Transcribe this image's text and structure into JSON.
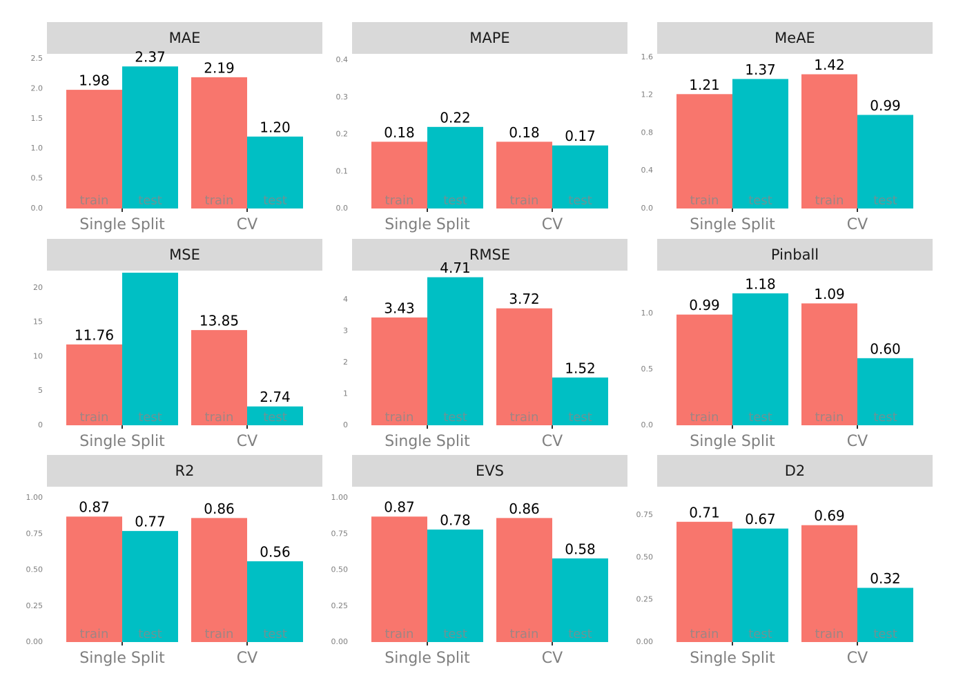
{
  "chart_data": [
    {
      "type": "bar",
      "title": "MAE",
      "categories": [
        "Single Split",
        "CV"
      ],
      "ylim": [
        0,
        2.58
      ],
      "yticks": [
        {
          "value": 0,
          "label": "0.0"
        },
        {
          "value": 0.5,
          "label": "0.5"
        },
        {
          "value": 1,
          "label": "1.0"
        },
        {
          "value": 1.5,
          "label": "1.5"
        },
        {
          "value": 2,
          "label": "2.0"
        },
        {
          "value": 2.5,
          "label": "2.5"
        }
      ],
      "series": [
        {
          "name": "train",
          "color": "#f8766d",
          "values": [
            1.98,
            2.19
          ],
          "value_labels": [
            "1.98",
            "2.19"
          ]
        },
        {
          "name": "test",
          "color": "#00bfc4",
          "values": [
            2.37,
            1.2
          ],
          "value_labels": [
            "2.37",
            "1.20"
          ]
        }
      ]
    },
    {
      "type": "bar",
      "title": "MAPE",
      "categories": [
        "Single Split",
        "CV"
      ],
      "ylim": [
        0,
        0.417
      ],
      "yticks": [
        {
          "value": 0,
          "label": "0.0"
        },
        {
          "value": 0.1,
          "label": "0.1"
        },
        {
          "value": 0.2,
          "label": "0.2"
        },
        {
          "value": 0.3,
          "label": "0.3"
        },
        {
          "value": 0.4,
          "label": "0.4"
        }
      ],
      "series": [
        {
          "name": "train",
          "color": "#f8766d",
          "values": [
            0.18,
            0.18
          ],
          "value_labels": [
            "0.18",
            "0.18"
          ]
        },
        {
          "name": "test",
          "color": "#00bfc4",
          "values": [
            0.22,
            0.17
          ],
          "value_labels": [
            "0.22",
            "0.17"
          ]
        }
      ]
    },
    {
      "type": "bar",
      "title": "MeAE",
      "categories": [
        "Single Split",
        "CV"
      ],
      "ylim": [
        0,
        1.636
      ],
      "yticks": [
        {
          "value": 0,
          "label": "0.0"
        },
        {
          "value": 0.4,
          "label": "0.4"
        },
        {
          "value": 0.8,
          "label": "0.8"
        },
        {
          "value": 1.2,
          "label": "1.2"
        },
        {
          "value": 1.6,
          "label": "1.6"
        }
      ],
      "series": [
        {
          "name": "train",
          "color": "#f8766d",
          "values": [
            1.21,
            1.42
          ],
          "value_labels": [
            "1.21",
            "1.42"
          ]
        },
        {
          "name": "test",
          "color": "#00bfc4",
          "values": [
            1.37,
            0.99
          ],
          "value_labels": [
            "1.37",
            "0.99"
          ]
        }
      ]
    },
    {
      "type": "bar",
      "title": "MSE",
      "categories": [
        "Single Split",
        "CV"
      ],
      "ylim": [
        0,
        22.5
      ],
      "yticks": [
        0,
        5,
        10,
        15,
        20
      ],
      "series": [
        {
          "name": "train",
          "color": "#f8766d",
          "values": [
            11.76,
            13.85
          ],
          "value_labels": [
            "11.76",
            "13.85"
          ]
        },
        {
          "name": "test",
          "color": "#00bfc4",
          "values": [
            22.2,
            2.74
          ],
          "value_labels": [
            null,
            "2.74"
          ]
        }
      ]
    },
    {
      "type": "bar",
      "title": "RMSE",
      "categories": [
        "Single Split",
        "CV"
      ],
      "ylim": [
        0,
        4.92
      ],
      "yticks": [
        0,
        1,
        2,
        3,
        4
      ],
      "series": [
        {
          "name": "train",
          "color": "#f8766d",
          "values": [
            3.43,
            3.72
          ],
          "value_labels": [
            "3.43",
            "3.72"
          ]
        },
        {
          "name": "test",
          "color": "#00bfc4",
          "values": [
            4.71,
            1.52
          ],
          "value_labels": [
            "4.71",
            "1.52"
          ]
        }
      ]
    },
    {
      "type": "bar",
      "title": "Pinball",
      "categories": [
        "Single Split",
        "CV"
      ],
      "ylim": [
        0,
        1.383
      ],
      "yticks": [
        {
          "value": 0,
          "label": "0.0"
        },
        {
          "value": 0.5,
          "label": "0.5"
        },
        {
          "value": 1,
          "label": "1.0"
        }
      ],
      "series": [
        {
          "name": "train",
          "color": "#f8766d",
          "values": [
            0.99,
            1.09
          ],
          "value_labels": [
            "0.99",
            "1.09"
          ]
        },
        {
          "name": "test",
          "color": "#00bfc4",
          "values": [
            1.18,
            0.6
          ],
          "value_labels": [
            "1.18",
            "0.60"
          ]
        }
      ]
    },
    {
      "type": "bar",
      "title": "R2",
      "categories": [
        "Single Split",
        "CV"
      ],
      "ylim": [
        0,
        1.077
      ],
      "yticks": [
        {
          "value": 0,
          "label": "0.00"
        },
        {
          "value": 0.25,
          "label": "0.25"
        },
        {
          "value": 0.5,
          "label": "0.50"
        },
        {
          "value": 0.75,
          "label": "0.75"
        },
        {
          "value": 1,
          "label": "1.00"
        }
      ],
      "series": [
        {
          "name": "train",
          "color": "#f8766d",
          "values": [
            0.87,
            0.86
          ],
          "value_labels": [
            "0.87",
            "0.86"
          ]
        },
        {
          "name": "test",
          "color": "#00bfc4",
          "values": [
            0.77,
            0.56
          ],
          "value_labels": [
            "0.77",
            "0.56"
          ]
        }
      ]
    },
    {
      "type": "bar",
      "title": "EVS",
      "categories": [
        "Single Split",
        "CV"
      ],
      "ylim": [
        0,
        1.077
      ],
      "yticks": [
        {
          "value": 0,
          "label": "0.00"
        },
        {
          "value": 0.25,
          "label": "0.25"
        },
        {
          "value": 0.5,
          "label": "0.50"
        },
        {
          "value": 0.75,
          "label": "0.75"
        },
        {
          "value": 1,
          "label": "1.00"
        }
      ],
      "series": [
        {
          "name": "train",
          "color": "#f8766d",
          "values": [
            0.87,
            0.86
          ],
          "value_labels": [
            "0.87",
            "0.86"
          ]
        },
        {
          "name": "test",
          "color": "#00bfc4",
          "values": [
            0.78,
            0.58
          ],
          "value_labels": [
            "0.78",
            "0.58"
          ]
        }
      ]
    },
    {
      "type": "bar",
      "title": "D2",
      "categories": [
        "Single Split",
        "CV"
      ],
      "ylim": [
        0,
        0.917
      ],
      "yticks": [
        {
          "value": 0,
          "label": "0.00"
        },
        {
          "value": 0.25,
          "label": "0.25"
        },
        {
          "value": 0.5,
          "label": "0.50"
        },
        {
          "value": 0.75,
          "label": "0.75"
        }
      ],
      "series": [
        {
          "name": "train",
          "color": "#f8766d",
          "values": [
            0.71,
            0.69
          ],
          "value_labels": [
            "0.71",
            "0.69"
          ]
        },
        {
          "name": "test",
          "color": "#00bfc4",
          "values": [
            0.67,
            0.32
          ],
          "value_labels": [
            "0.67",
            "0.32"
          ]
        }
      ]
    }
  ]
}
